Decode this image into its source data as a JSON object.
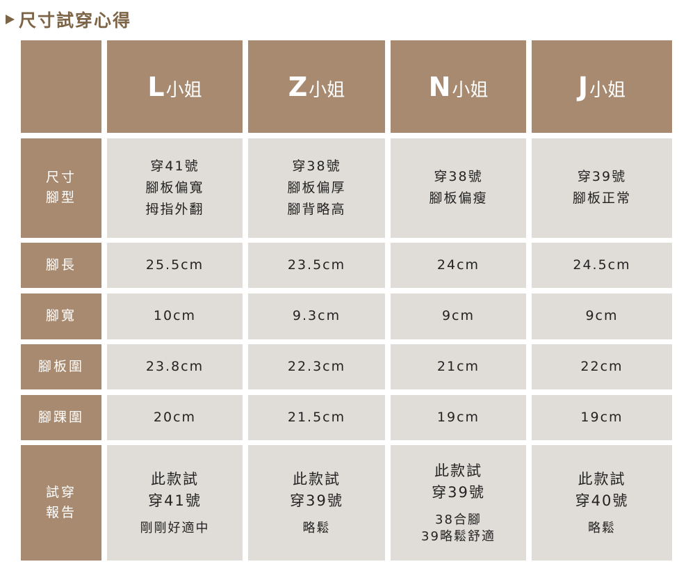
{
  "title": "尺寸試穿心得",
  "colors": {
    "brown": "#a78a70",
    "cell": "#e0ddd8",
    "title": "#7d6446"
  },
  "headers": [
    {
      "letter": "L",
      "suffix": "小姐"
    },
    {
      "letter": "Z",
      "suffix": "小姐"
    },
    {
      "letter": "N",
      "suffix": "小姐"
    },
    {
      "letter": "J",
      "suffix": "小姐"
    }
  ],
  "rows": [
    {
      "label": [
        "尺寸",
        "腳型"
      ],
      "cells": [
        [
          "穿41號",
          "腳板偏寬",
          "拇指外翻"
        ],
        [
          "穿38號",
          "腳板偏厚",
          "腳背略高"
        ],
        [
          "穿38號",
          "腳板偏瘦"
        ],
        [
          "穿39號",
          "腳板正常"
        ]
      ]
    },
    {
      "label": [
        "腳長"
      ],
      "cells": [
        [
          "25.5cm"
        ],
        [
          "23.5cm"
        ],
        [
          "24cm"
        ],
        [
          "24.5cm"
        ]
      ]
    },
    {
      "label": [
        "腳寬"
      ],
      "cells": [
        [
          "10cm"
        ],
        [
          "9.3cm"
        ],
        [
          "9cm"
        ],
        [
          "9cm"
        ]
      ]
    },
    {
      "label": [
        "腳板圍"
      ],
      "cells": [
        [
          "23.8cm"
        ],
        [
          "22.3cm"
        ],
        [
          "21cm"
        ],
        [
          "22cm"
        ]
      ]
    },
    {
      "label": [
        "腳踝圍"
      ],
      "cells": [
        [
          "20cm"
        ],
        [
          "21.5cm"
        ],
        [
          "19cm"
        ],
        [
          "19cm"
        ]
      ]
    }
  ],
  "report": {
    "label": [
      "試穿",
      "報告"
    ],
    "cells": [
      {
        "main": [
          "此款試",
          "穿41號"
        ],
        "sub": [
          "剛剛好適中"
        ]
      },
      {
        "main": [
          "此款試",
          "穿39號"
        ],
        "sub": [
          "略鬆"
        ]
      },
      {
        "main": [
          "此款試",
          "穿39號"
        ],
        "sub": [
          "38合腳",
          "39略鬆舒適"
        ]
      },
      {
        "main": [
          "此款試",
          "穿40號"
        ],
        "sub": [
          "略鬆"
        ]
      }
    ]
  }
}
